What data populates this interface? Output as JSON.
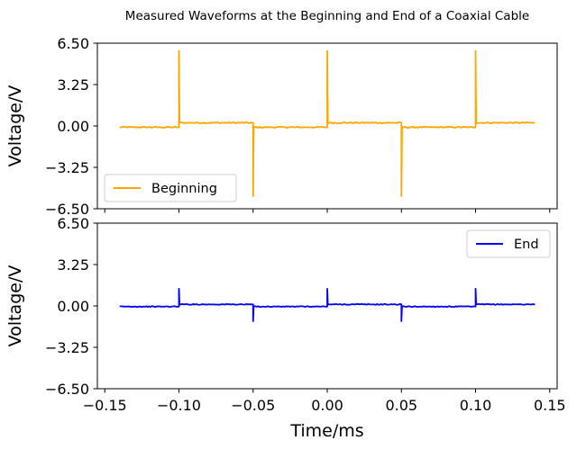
{
  "chart_data": {
    "type": "line",
    "title": "Measured Waveforms at the Beginning and End of a Coaxial Cable",
    "xlabel": "Time/ms",
    "ylabel": "Voltage/V",
    "xlim": [
      -0.155,
      0.155
    ],
    "ylim": [
      -6.5,
      6.5
    ],
    "xticks": [
      "−0.15",
      "−0.10",
      "−0.05",
      "0.00",
      "0.05",
      "0.10",
      "0.15"
    ],
    "yticks": [
      "6.50",
      "3.25",
      "0.00",
      "−3.25",
      "−6.50"
    ],
    "grid": false,
    "panels": [
      {
        "legend": "lower-left",
        "series": {
          "name": "Beginning",
          "color": "#ffa500",
          "x_range": [
            -0.14,
            0.14
          ],
          "edges": [
            {
              "t": -0.1,
              "spike": 5.9,
              "after": 0.25
            },
            {
              "t": -0.05,
              "spike": -5.5,
              "after": -0.1
            },
            {
              "t": 0.0,
              "spike": 5.9,
              "after": 0.25
            },
            {
              "t": 0.05,
              "spike": -5.5,
              "after": -0.1
            },
            {
              "t": 0.1,
              "spike": 5.9,
              "after": 0.25
            }
          ],
          "initial_level": -0.1
        }
      },
      {
        "legend": "upper-right",
        "series": {
          "name": "End",
          "color": "#0000ff",
          "x_range": [
            -0.14,
            0.14
          ],
          "edges": [
            {
              "t": -0.1,
              "spike": 1.35,
              "after": 0.12
            },
            {
              "t": -0.05,
              "spike": -1.2,
              "after": -0.05
            },
            {
              "t": 0.0,
              "spike": 1.35,
              "after": 0.12
            },
            {
              "t": 0.05,
              "spike": -1.2,
              "after": -0.05
            },
            {
              "t": 0.1,
              "spike": 1.35,
              "after": 0.12
            }
          ],
          "initial_level": -0.05
        }
      }
    ]
  }
}
